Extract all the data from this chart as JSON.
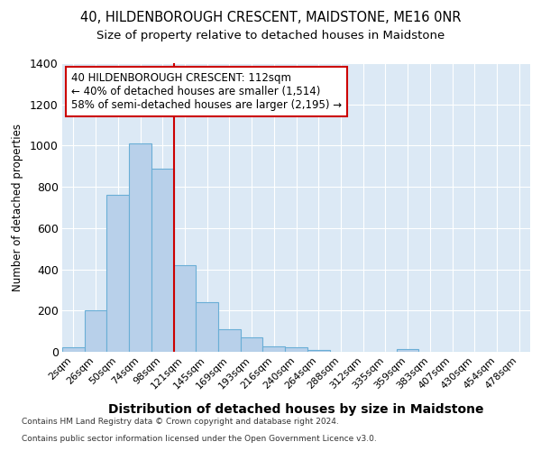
{
  "title1": "40, HILDENBOROUGH CRESCENT, MAIDSTONE, ME16 0NR",
  "title2": "Size of property relative to detached houses in Maidstone",
  "xlabel": "Distribution of detached houses by size in Maidstone",
  "ylabel": "Number of detached properties",
  "bar_labels": [
    "2sqm",
    "26sqm",
    "50sqm",
    "74sqm",
    "98sqm",
    "121sqm",
    "145sqm",
    "169sqm",
    "193sqm",
    "216sqm",
    "240sqm",
    "264sqm",
    "288sqm",
    "312sqm",
    "335sqm",
    "359sqm",
    "383sqm",
    "407sqm",
    "430sqm",
    "454sqm",
    "478sqm"
  ],
  "bar_values": [
    20,
    200,
    760,
    1010,
    890,
    420,
    240,
    110,
    70,
    25,
    20,
    10,
    0,
    0,
    0,
    15,
    0,
    0,
    0,
    0,
    0
  ],
  "bar_color": "#b8d0ea",
  "bar_edge_color": "#6aaed6",
  "vline_color": "#cc0000",
  "annotation_title": "40 HILDENBOROUGH CRESCENT: 112sqm",
  "annotation_line1": "← 40% of detached houses are smaller (1,514)",
  "annotation_line2": "58% of semi-detached houses are larger (2,195) →",
  "annotation_box_color": "#cc0000",
  "ylim": [
    0,
    1400
  ],
  "yticks": [
    0,
    200,
    400,
    600,
    800,
    1000,
    1200,
    1400
  ],
  "footnote1": "Contains HM Land Registry data © Crown copyright and database right 2024.",
  "footnote2": "Contains public sector information licensed under the Open Government Licence v3.0.",
  "plot_bg_color": "#dce9f5"
}
